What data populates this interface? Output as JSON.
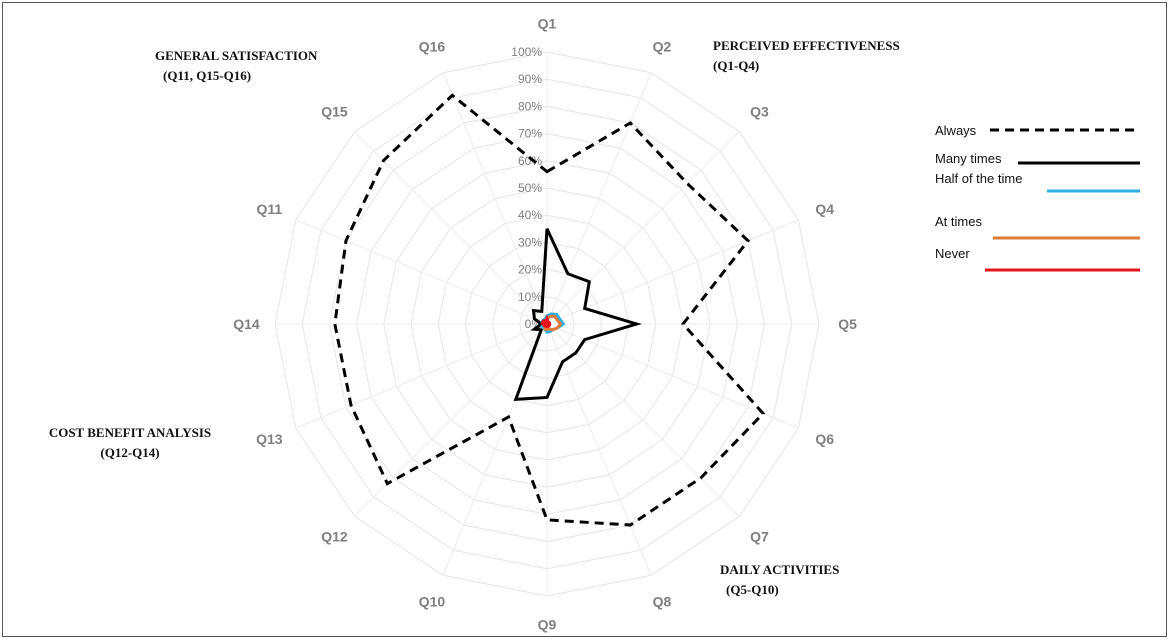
{
  "chart_data": {
    "type": "radar",
    "axes": [
      "Q1",
      "Q2",
      "Q3",
      "Q4",
      "Q5",
      "Q6",
      "Q7",
      "Q8",
      "Q9",
      "Q10",
      "Q12",
      "Q13",
      "Q14",
      "Q11",
      "Q15",
      "Q16"
    ],
    "r_ticks": [
      "0%",
      "10%",
      "20%",
      "30%",
      "40%",
      "50%",
      "60%",
      "70%",
      "80%",
      "90%",
      "100%"
    ],
    "rlim": [
      0,
      100
    ],
    "series": [
      {
        "name": "Always",
        "color": "#000000",
        "dash": "dashed",
        "values": [
          56,
          80,
          73,
          80,
          50,
          86,
          80,
          80,
          72,
          37,
          83,
          78,
          78,
          80,
          85,
          91
        ]
      },
      {
        "name": "Many times",
        "color": "#000000",
        "dash": "solid",
        "values": [
          35,
          20,
          22,
          15,
          33,
          15,
          15,
          15,
          27,
          30,
          3,
          5,
          2,
          5,
          7,
          5
        ]
      },
      {
        "name": "Half of the time",
        "color": "#2eaee5",
        "dash": "solid",
        "values": [
          3,
          4,
          5,
          5,
          6,
          4,
          3,
          3,
          3,
          2,
          2,
          2,
          1,
          2,
          2,
          2
        ]
      },
      {
        "name": "At times",
        "color": "#e07b39",
        "dash": "solid",
        "values": [
          2,
          3,
          4,
          4,
          5,
          4,
          3,
          2,
          2,
          2,
          1,
          1,
          1,
          1,
          1,
          1
        ]
      },
      {
        "name": "Never",
        "color": "#e5131b",
        "dash": "solid",
        "values": [
          2,
          1,
          1,
          1,
          1,
          1,
          1,
          1,
          1,
          1,
          1,
          1,
          1,
          1,
          1,
          1
        ]
      }
    ],
    "legend": {
      "position": "right"
    },
    "group_labels": [
      {
        "line1": "PERCEIVED EFFECTIVENESS",
        "line2": "(Q1-Q4)"
      },
      {
        "line1": "DAILY ACTIVITIES",
        "line2": "(Q5-Q10)"
      },
      {
        "line1": "COST BENEFIT ANALYSIS",
        "line2": "(Q12-Q14)"
      },
      {
        "line1": "GENERAL SATISFACTION",
        "line2": "(Q11, Q15-Q16)"
      }
    ]
  }
}
